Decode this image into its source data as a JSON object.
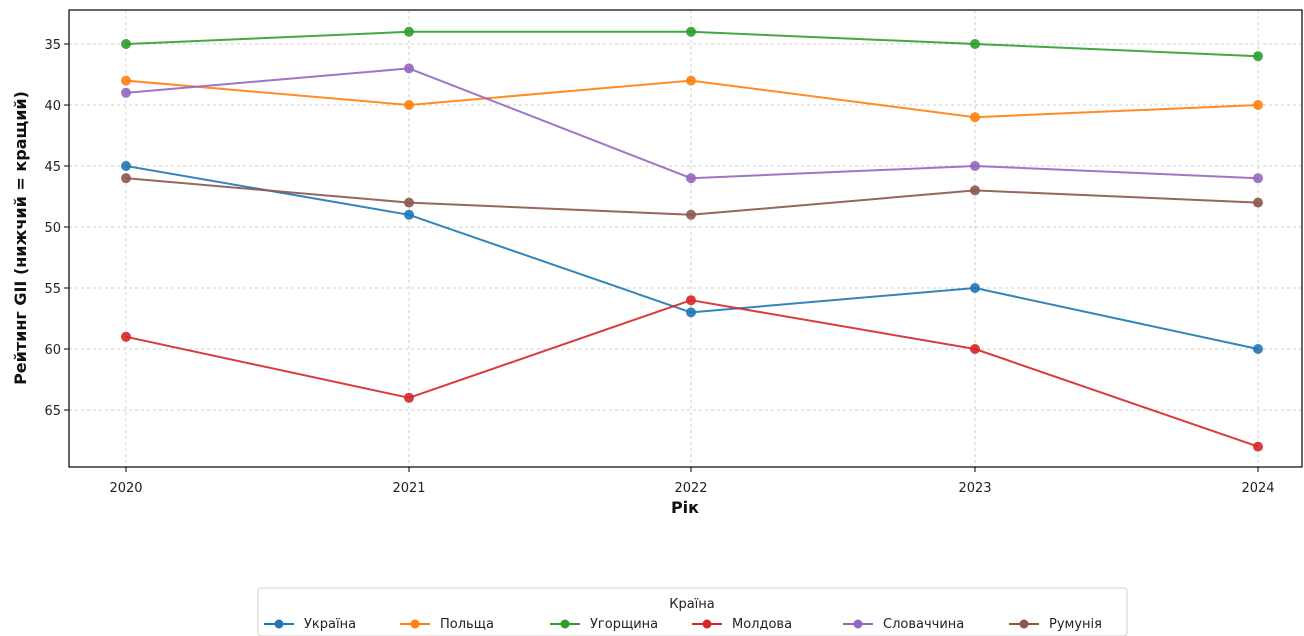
{
  "chart_data": {
    "type": "line",
    "xlabel": "Рік",
    "ylabel": "Рейтинг GII (нижчий = кращий)",
    "categories": [
      "2020",
      "2021",
      "2022",
      "2023",
      "2024"
    ],
    "y_ticks": [
      35,
      40,
      45,
      50,
      55,
      60,
      65
    ],
    "ylim": [
      69.5,
      33
    ],
    "y_inverted": true,
    "grid": true,
    "legend": {
      "title": "Країна",
      "placement": "bottom-center"
    },
    "series": [
      {
        "name": "Україна",
        "color": "#1f77b4",
        "values": [
          45,
          49,
          57,
          55,
          60
        ]
      },
      {
        "name": "Польща",
        "color": "#ff7f0e",
        "values": [
          38,
          40,
          38,
          41,
          40
        ]
      },
      {
        "name": "Угорщина",
        "color": "#2ca02c",
        "values": [
          35,
          34,
          34,
          35,
          36
        ]
      },
      {
        "name": "Молдова",
        "color": "#d62728",
        "values": [
          59,
          64,
          56,
          60,
          68
        ]
      },
      {
        "name": "Словаччина",
        "color": "#9467bd",
        "values": [
          39,
          37,
          46,
          45,
          46
        ]
      },
      {
        "name": "Румунія",
        "color": "#8c564b",
        "values": [
          46,
          48,
          49,
          47,
          48
        ]
      }
    ]
  }
}
